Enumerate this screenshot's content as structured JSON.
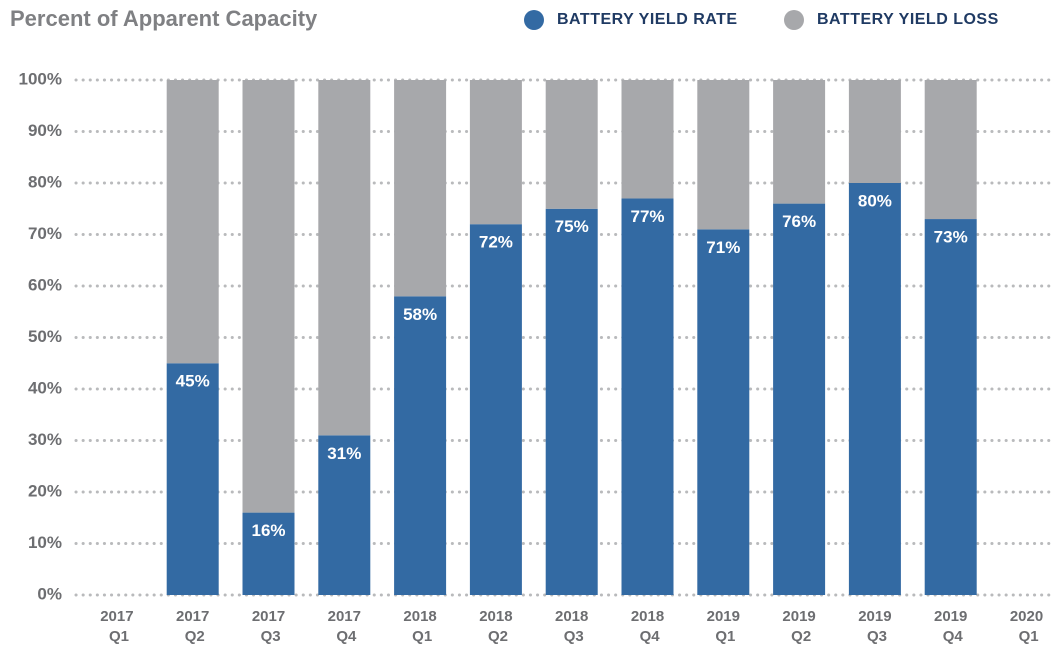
{
  "chart_data": {
    "type": "stacked_bar",
    "title": "Percent of Apparent Capacity",
    "categories": [
      "2017 Q1",
      "2017 Q2",
      "2017 Q3",
      "2017 Q4",
      "2018 Q1",
      "2018 Q2",
      "2018 Q3",
      "2018 Q4",
      "2019 Q1",
      "2019 Q2",
      "2019 Q3",
      "2019 Q4",
      "2020 Q1"
    ],
    "series": [
      {
        "name": "BATTERY YIELD RATE",
        "color": "#336aa3",
        "values": [
          null,
          45,
          16,
          31,
          58,
          72,
          75,
          77,
          71,
          76,
          80,
          73,
          null
        ],
        "value_labels": [
          null,
          "45%",
          "16%",
          "31%",
          "58%",
          "72%",
          "75%",
          "77%",
          "71%",
          "76%",
          "80%",
          "73%",
          null
        ]
      },
      {
        "name": "BATTERY YIELD LOSS",
        "color": "#a7a8ab",
        "values": [
          null,
          55,
          84,
          69,
          42,
          28,
          25,
          23,
          29,
          24,
          20,
          27,
          null
        ]
      }
    ],
    "ylim": [
      0,
      100
    ],
    "yticks": [
      {
        "value": 0,
        "label": "0%"
      },
      {
        "value": 10,
        "label": "10%"
      },
      {
        "value": 20,
        "label": "20%"
      },
      {
        "value": 30,
        "label": "30%"
      },
      {
        "value": 40,
        "label": "40%"
      },
      {
        "value": 50,
        "label": "50%"
      },
      {
        "value": 60,
        "label": "60%"
      },
      {
        "value": 70,
        "label": "70%"
      },
      {
        "value": 80,
        "label": "80%"
      },
      {
        "value": 90,
        "label": "90%"
      },
      {
        "value": 100,
        "label": "100%"
      }
    ],
    "grid": true,
    "legend_position": "top-right"
  }
}
